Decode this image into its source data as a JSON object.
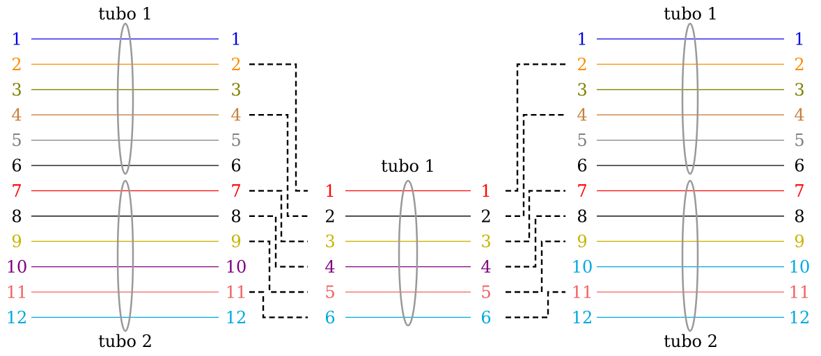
{
  "left_block": {
    "top_label": "tubo 1",
    "bottom_label": "tubo 2",
    "fibers": [
      {
        "num": "1",
        "color": "#0000e6"
      },
      {
        "num": "2",
        "color": "#ff8c00"
      },
      {
        "num": "3",
        "color": "#808000"
      },
      {
        "num": "4",
        "color": "#c87f3d"
      },
      {
        "num": "5",
        "color": "#808080"
      },
      {
        "num": "6",
        "color": "#000000"
      },
      {
        "num": "7",
        "color": "#ff0000"
      },
      {
        "num": "8",
        "color": "#000000"
      },
      {
        "num": "9",
        "color": "#c8b400"
      },
      {
        "num": "10",
        "color": "#800080"
      },
      {
        "num": "11",
        "color": "#f06060"
      },
      {
        "num": "12",
        "color": "#00a8e0"
      }
    ]
  },
  "center_block": {
    "top_label": "tubo 1",
    "fibers": [
      {
        "num": "1",
        "color": "#ff0000"
      },
      {
        "num": "2",
        "color": "#000000"
      },
      {
        "num": "3",
        "color": "#c8b400"
      },
      {
        "num": "4",
        "color": "#800080"
      },
      {
        "num": "5",
        "color": "#f06060"
      },
      {
        "num": "6",
        "color": "#00a8e0"
      }
    ]
  },
  "right_block": {
    "top_label": "tubo 1",
    "bottom_label": "tubo 2",
    "fibers": [
      {
        "num": "1",
        "color": "#0000e6"
      },
      {
        "num": "2",
        "color": "#ff8c00"
      },
      {
        "num": "3",
        "color": "#808000"
      },
      {
        "num": "4",
        "color": "#c87f3d"
      },
      {
        "num": "5",
        "color": "#808080"
      },
      {
        "num": "6",
        "color": "#000000"
      },
      {
        "num": "7",
        "color": "#ff0000"
      },
      {
        "num": "8",
        "color": "#000000"
      },
      {
        "num": "9",
        "color": "#c8b400"
      },
      {
        "num": "10",
        "color": "#00a8e0"
      },
      {
        "num": "11",
        "color": "#f06060"
      },
      {
        "num": "12",
        "color": "#00a8e0"
      }
    ]
  },
  "splices_left": [
    {
      "from": "2",
      "to": "1"
    },
    {
      "from": "4",
      "to": "2"
    },
    {
      "from": "7",
      "to": "3"
    },
    {
      "from": "8",
      "to": "4"
    },
    {
      "from": "9",
      "to": "5"
    },
    {
      "from": "11",
      "to": "6"
    }
  ],
  "splices_right": [
    {
      "from": "1",
      "to": "2"
    },
    {
      "from": "2",
      "to": "4"
    },
    {
      "from": "3",
      "to": "7"
    },
    {
      "from": "4",
      "to": "8"
    },
    {
      "from": "5",
      "to": "9"
    },
    {
      "from": "6",
      "to": "11"
    }
  ],
  "colors": {
    "ellipse": "#999999",
    "splice": "#000000"
  }
}
